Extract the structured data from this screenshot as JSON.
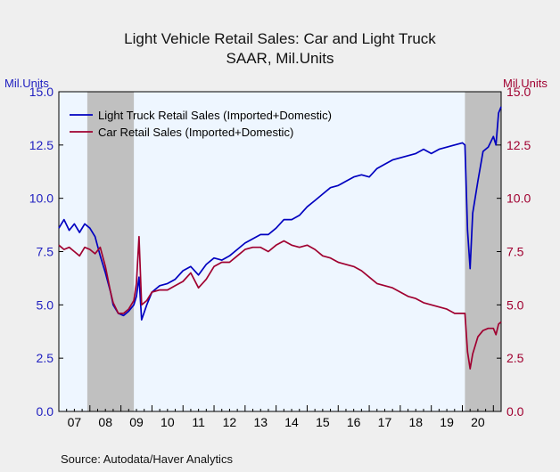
{
  "title": "Light Vehicle Retail Sales: Car and Light Truck",
  "subtitle": "SAAR, Mil.Units",
  "source": "Source:  Autodata/Haver Analytics",
  "chart_data": {
    "type": "line",
    "title": "Light Vehicle Retail Sales: Car and Light Truck",
    "subtitle": "SAAR, Mil.Units",
    "left_axis_label": "Mil.Units",
    "right_axis_label": "Mil.Units",
    "ylim": [
      0,
      15
    ],
    "y_ticks": [
      "0.0",
      "2.5",
      "5.0",
      "7.5",
      "10.0",
      "12.5",
      "15.0"
    ],
    "x_range": [
      "2007-01",
      "2021-04"
    ],
    "x_ticks": [
      "07",
      "08",
      "09",
      "10",
      "11",
      "12",
      "13",
      "14",
      "15",
      "16",
      "17",
      "18",
      "19",
      "20"
    ],
    "recessions": [
      [
        "2007-12",
        "2009-06"
      ],
      [
        "2020-02",
        "2021-04"
      ]
    ],
    "legend_position": "top-left",
    "grid": false,
    "colors": {
      "truck": "#0000c0",
      "car": "#a00030",
      "axis_left": "#2020c0",
      "axis_right": "#a00030",
      "recession": "#c0c0c0",
      "plot_bg": "#eef6ff"
    },
    "series": [
      {
        "name": "Light Truck Retail Sales (Imported+Domestic)",
        "axis": "left",
        "points": [
          [
            "2007-01",
            8.6
          ],
          [
            "2007-03",
            9.0
          ],
          [
            "2007-05",
            8.5
          ],
          [
            "2007-07",
            8.8
          ],
          [
            "2007-09",
            8.4
          ],
          [
            "2007-11",
            8.8
          ],
          [
            "2008-01",
            8.6
          ],
          [
            "2008-03",
            8.2
          ],
          [
            "2008-05",
            7.3
          ],
          [
            "2008-07",
            6.5
          ],
          [
            "2008-09",
            5.6
          ],
          [
            "2008-10",
            5.0
          ],
          [
            "2008-12",
            4.6
          ],
          [
            "2009-02",
            4.5
          ],
          [
            "2009-04",
            4.7
          ],
          [
            "2009-06",
            5.0
          ],
          [
            "2009-07",
            5.4
          ],
          [
            "2009-08",
            6.3
          ],
          [
            "2009-09",
            4.3
          ],
          [
            "2009-11",
            5.0
          ],
          [
            "2010-01",
            5.6
          ],
          [
            "2010-04",
            5.9
          ],
          [
            "2010-07",
            6.0
          ],
          [
            "2010-10",
            6.2
          ],
          [
            "2011-01",
            6.6
          ],
          [
            "2011-04",
            6.8
          ],
          [
            "2011-07",
            6.4
          ],
          [
            "2011-10",
            6.9
          ],
          [
            "2012-01",
            7.2
          ],
          [
            "2012-04",
            7.1
          ],
          [
            "2012-07",
            7.3
          ],
          [
            "2012-10",
            7.6
          ],
          [
            "2013-01",
            7.9
          ],
          [
            "2013-04",
            8.1
          ],
          [
            "2013-07",
            8.3
          ],
          [
            "2013-10",
            8.3
          ],
          [
            "2014-01",
            8.6
          ],
          [
            "2014-04",
            9.0
          ],
          [
            "2014-07",
            9.0
          ],
          [
            "2014-10",
            9.2
          ],
          [
            "2015-01",
            9.6
          ],
          [
            "2015-04",
            9.9
          ],
          [
            "2015-07",
            10.2
          ],
          [
            "2015-10",
            10.5
          ],
          [
            "2016-01",
            10.6
          ],
          [
            "2016-04",
            10.8
          ],
          [
            "2016-07",
            11.0
          ],
          [
            "2016-10",
            11.1
          ],
          [
            "2017-01",
            11.0
          ],
          [
            "2017-04",
            11.4
          ],
          [
            "2017-07",
            11.6
          ],
          [
            "2017-10",
            11.8
          ],
          [
            "2018-01",
            11.9
          ],
          [
            "2018-04",
            12.0
          ],
          [
            "2018-07",
            12.1
          ],
          [
            "2018-10",
            12.3
          ],
          [
            "2019-01",
            12.1
          ],
          [
            "2019-04",
            12.3
          ],
          [
            "2019-07",
            12.4
          ],
          [
            "2019-10",
            12.5
          ],
          [
            "2020-01",
            12.6
          ],
          [
            "2020-02",
            12.5
          ],
          [
            "2020-03",
            8.5
          ],
          [
            "2020-04",
            6.7
          ],
          [
            "2020-05",
            9.3
          ],
          [
            "2020-07",
            10.8
          ],
          [
            "2020-09",
            12.2
          ],
          [
            "2020-11",
            12.4
          ],
          [
            "2021-01",
            12.9
          ],
          [
            "2021-02",
            12.5
          ],
          [
            "2021-03",
            14.0
          ],
          [
            "2021-04",
            14.3
          ]
        ]
      },
      {
        "name": "Car Retail Sales (Imported+Domestic)",
        "axis": "right",
        "points": [
          [
            "2007-01",
            7.8
          ],
          [
            "2007-03",
            7.6
          ],
          [
            "2007-05",
            7.7
          ],
          [
            "2007-07",
            7.5
          ],
          [
            "2007-09",
            7.3
          ],
          [
            "2007-11",
            7.7
          ],
          [
            "2008-01",
            7.6
          ],
          [
            "2008-03",
            7.4
          ],
          [
            "2008-05",
            7.7
          ],
          [
            "2008-07",
            6.8
          ],
          [
            "2008-09",
            5.6
          ],
          [
            "2008-10",
            5.1
          ],
          [
            "2008-12",
            4.6
          ],
          [
            "2009-02",
            4.6
          ],
          [
            "2009-04",
            4.8
          ],
          [
            "2009-06",
            5.2
          ],
          [
            "2009-07",
            6.0
          ],
          [
            "2009-08",
            8.2
          ],
          [
            "2009-09",
            5.0
          ],
          [
            "2009-11",
            5.2
          ],
          [
            "2010-01",
            5.6
          ],
          [
            "2010-04",
            5.7
          ],
          [
            "2010-07",
            5.7
          ],
          [
            "2010-10",
            5.9
          ],
          [
            "2011-01",
            6.1
          ],
          [
            "2011-04",
            6.5
          ],
          [
            "2011-07",
            5.8
          ],
          [
            "2011-10",
            6.2
          ],
          [
            "2012-01",
            6.8
          ],
          [
            "2012-04",
            7.0
          ],
          [
            "2012-07",
            7.0
          ],
          [
            "2012-10",
            7.3
          ],
          [
            "2013-01",
            7.6
          ],
          [
            "2013-04",
            7.7
          ],
          [
            "2013-07",
            7.7
          ],
          [
            "2013-10",
            7.5
          ],
          [
            "2014-01",
            7.8
          ],
          [
            "2014-04",
            8.0
          ],
          [
            "2014-07",
            7.8
          ],
          [
            "2014-10",
            7.7
          ],
          [
            "2015-01",
            7.8
          ],
          [
            "2015-04",
            7.6
          ],
          [
            "2015-07",
            7.3
          ],
          [
            "2015-10",
            7.2
          ],
          [
            "2016-01",
            7.0
          ],
          [
            "2016-04",
            6.9
          ],
          [
            "2016-07",
            6.8
          ],
          [
            "2016-10",
            6.6
          ],
          [
            "2017-01",
            6.3
          ],
          [
            "2017-04",
            6.0
          ],
          [
            "2017-07",
            5.9
          ],
          [
            "2017-10",
            5.8
          ],
          [
            "2018-01",
            5.6
          ],
          [
            "2018-04",
            5.4
          ],
          [
            "2018-07",
            5.3
          ],
          [
            "2018-10",
            5.1
          ],
          [
            "2019-01",
            5.0
          ],
          [
            "2019-04",
            4.9
          ],
          [
            "2019-07",
            4.8
          ],
          [
            "2019-10",
            4.6
          ],
          [
            "2020-01",
            4.6
          ],
          [
            "2020-02",
            4.6
          ],
          [
            "2020-03",
            2.8
          ],
          [
            "2020-04",
            2.0
          ],
          [
            "2020-05",
            2.7
          ],
          [
            "2020-07",
            3.5
          ],
          [
            "2020-09",
            3.8
          ],
          [
            "2020-11",
            3.9
          ],
          [
            "2021-01",
            3.9
          ],
          [
            "2021-02",
            3.6
          ],
          [
            "2021-03",
            4.1
          ],
          [
            "2021-04",
            4.2
          ]
        ]
      }
    ]
  }
}
